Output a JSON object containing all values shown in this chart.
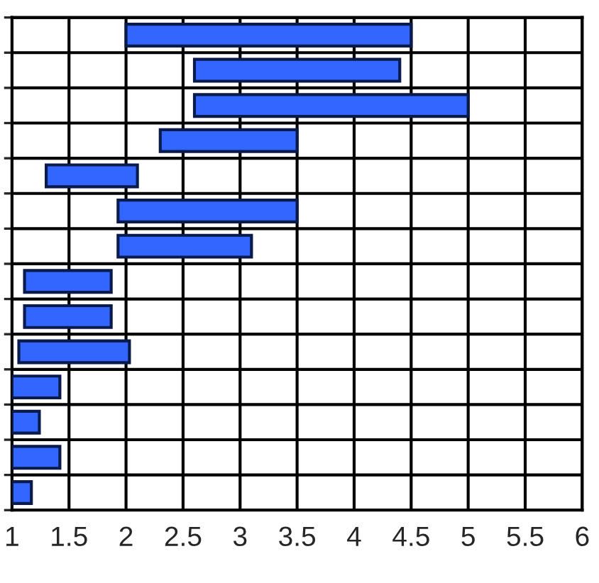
{
  "chart_data": {
    "type": "bar",
    "orientation": "horizontal",
    "categories": [
      null,
      null,
      null,
      null,
      null,
      null,
      null,
      null,
      null,
      null,
      null,
      null,
      null,
      null
    ],
    "base": [
      2.0,
      2.6,
      2.6,
      2.3,
      1.3,
      1.93,
      1.93,
      1.11,
      1.11,
      1.06,
      1.0,
      1.0,
      1.0,
      1.0
    ],
    "values": [
      2.5,
      1.8,
      2.4,
      1.2,
      0.8,
      1.57,
      1.17,
      0.76,
      0.76,
      0.97,
      0.42,
      0.24,
      0.42,
      0.17
    ],
    "color": "#3366ff",
    "xlim": [
      1,
      6
    ],
    "xticks": [
      1,
      1.5,
      2,
      2.5,
      3,
      3.5,
      4,
      4.5,
      5,
      5.5,
      6
    ],
    "grid": true,
    "tick_labels": "x"
  }
}
